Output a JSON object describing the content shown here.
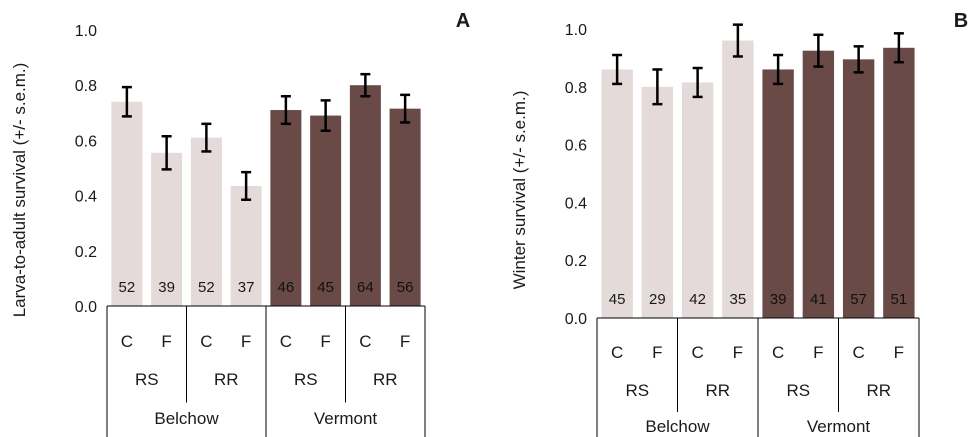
{
  "colors": {
    "belchow": "#e5dada",
    "vermont": "#6a4a47",
    "error_bar": "#000000",
    "axis": "#000000"
  },
  "chart_data": [
    {
      "type": "bar",
      "panel_label": "A",
      "ylabel": "Larva-to-adult survival (+/- s.e.m.)",
      "ylim": [
        0,
        1.0
      ],
      "yticks": [
        "0.0",
        "0.2",
        "0.4",
        "0.6",
        "0.8",
        "1.0"
      ],
      "grid": false,
      "groups": [
        "Belchow",
        "Vermont"
      ],
      "subgroups": [
        "RS",
        "RR",
        "RS",
        "RR"
      ],
      "categories": [
        "C",
        "F",
        "C",
        "F",
        "C",
        "F",
        "C",
        "F"
      ],
      "values": [
        0.74,
        0.555,
        0.61,
        0.435,
        0.71,
        0.69,
        0.8,
        0.715
      ],
      "errors": [
        0.053,
        0.06,
        0.05,
        0.05,
        0.05,
        0.055,
        0.04,
        0.05
      ],
      "sample_sizes": [
        "52",
        "39",
        "52",
        "37",
        "46",
        "45",
        "64",
        "56"
      ]
    },
    {
      "type": "bar",
      "panel_label": "B",
      "ylabel": "Winter survival (+/- s.e.m.)",
      "ylim": [
        0,
        1.0
      ],
      "yticks": [
        "0.0",
        "0.2",
        "0.4",
        "0.6",
        "0.8",
        "1.0"
      ],
      "grid": false,
      "groups": [
        "Belchow",
        "Vermont"
      ],
      "subgroups": [
        "RS",
        "RR",
        "RS",
        "RR"
      ],
      "categories": [
        "C",
        "F",
        "C",
        "F",
        "C",
        "F",
        "C",
        "F"
      ],
      "values": [
        0.86,
        0.8,
        0.815,
        0.96,
        0.86,
        0.925,
        0.895,
        0.935
      ],
      "errors": [
        0.05,
        0.06,
        0.05,
        0.055,
        0.05,
        0.055,
        0.045,
        0.05
      ],
      "sample_sizes": [
        "45",
        "29",
        "42",
        "35",
        "39",
        "41",
        "57",
        "51"
      ]
    }
  ]
}
